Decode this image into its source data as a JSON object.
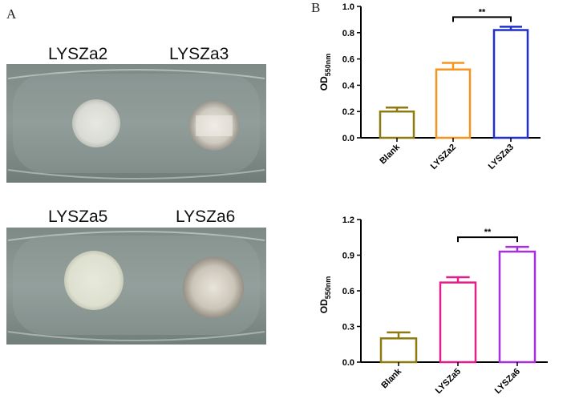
{
  "panel_a": {
    "letter": "A",
    "plate_top": {
      "labels": [
        "LYSZa2",
        "LYSZa3"
      ]
    },
    "plate_bottom": {
      "labels": [
        "LYSZa5",
        "LYSZa6"
      ]
    }
  },
  "panel_b": {
    "letter": "B"
  },
  "chart_data": [
    {
      "type": "bar",
      "categories": [
        "Blank",
        "LYSZa2",
        "LYSZa3"
      ],
      "values": [
        0.2,
        0.52,
        0.82
      ],
      "errors": [
        0.03,
        0.05,
        0.025
      ],
      "colors": [
        "#8f7a10",
        "#f7941d",
        "#1f2fd0"
      ],
      "ylabel_main": "OD",
      "ylabel_sub": "550nm",
      "ylim": [
        0,
        1.0
      ],
      "yticks": [
        "0.0",
        "0.2",
        "0.4",
        "0.6",
        "0.8",
        "1.0"
      ],
      "ytick_values": [
        0,
        0.2,
        0.4,
        0.6,
        0.8,
        1.0
      ],
      "significance": {
        "from": "LYSZa2",
        "to": "LYSZa3",
        "label": "**"
      }
    },
    {
      "type": "bar",
      "categories": [
        "Blank",
        "LYSZa5",
        "LYSZa6"
      ],
      "values": [
        0.2,
        0.67,
        0.93
      ],
      "errors": [
        0.05,
        0.045,
        0.04
      ],
      "colors": [
        "#8f7a10",
        "#e01f8b",
        "#a72fe0"
      ],
      "ylabel_main": "OD",
      "ylabel_sub": "550nm",
      "ylim": [
        0,
        1.2
      ],
      "yticks": [
        "0.0",
        "0.3",
        "0.6",
        "0.9",
        "1.2"
      ],
      "ytick_values": [
        0,
        0.3,
        0.6,
        0.9,
        1.2
      ],
      "significance": {
        "from": "LYSZa5",
        "to": "LYSZa6",
        "label": "**"
      }
    }
  ]
}
